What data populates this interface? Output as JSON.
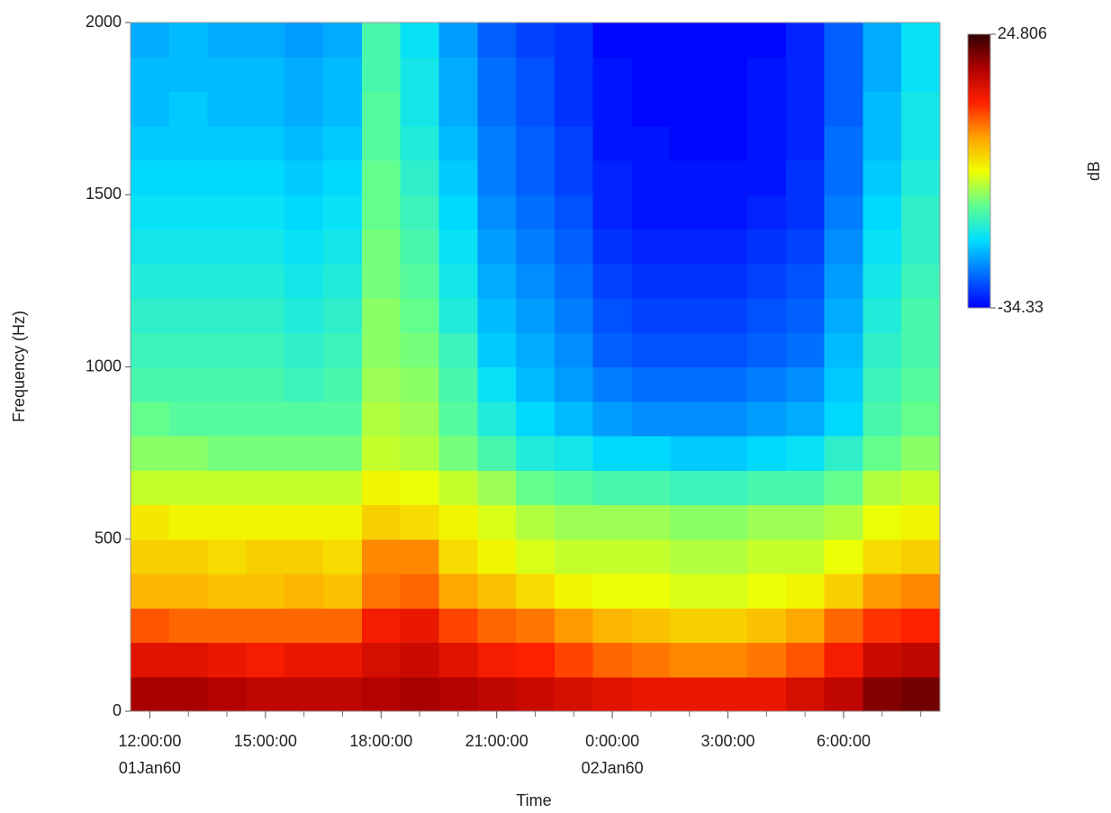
{
  "chart_data": {
    "type": "heatmap",
    "x_label": "Time",
    "y_label": "Frequency (Hz)",
    "colorbar_label": "dB",
    "x": [
      12,
      13,
      14,
      15,
      16,
      17,
      18,
      19,
      20,
      21,
      22,
      23,
      24,
      25,
      26,
      27,
      28,
      29,
      30,
      31,
      32
    ],
    "y": [
      50,
      150,
      250,
      350,
      450,
      550,
      650,
      750,
      850,
      950,
      1050,
      1150,
      1250,
      1350,
      1450,
      1550,
      1650,
      1750,
      1850,
      1950
    ],
    "z": [
      [
        18,
        18,
        17,
        16,
        16,
        16,
        17,
        18,
        17,
        16,
        15,
        14,
        13,
        12,
        12,
        12,
        12,
        14,
        16,
        20,
        21
      ],
      [
        13,
        13,
        12,
        11,
        12,
        12,
        14,
        15,
        13,
        11,
        10,
        8,
        6,
        5,
        4,
        4,
        5,
        7,
        11,
        15,
        16
      ],
      [
        7,
        6,
        6,
        6,
        6,
        6,
        11,
        12,
        8,
        6,
        5,
        3,
        1,
        0,
        -1,
        -1,
        0,
        2,
        6,
        9,
        10
      ],
      [
        1,
        1,
        0,
        0,
        1,
        0,
        5,
        6,
        2,
        0,
        -2,
        -4,
        -5,
        -5,
        -6,
        -6,
        -5,
        -4,
        -1,
        3,
        4
      ],
      [
        -1,
        -1,
        -2,
        -1,
        -1,
        -2,
        4,
        4,
        -2,
        -4,
        -6,
        -7,
        -7,
        -7,
        -8,
        -8,
        -7,
        -7,
        -5,
        -2,
        -1
      ],
      [
        -3,
        -4,
        -4,
        -4,
        -4,
        -4,
        -1,
        -2,
        -4,
        -6,
        -8,
        -9,
        -9,
        -9,
        -10,
        -10,
        -9,
        -9,
        -8,
        -5,
        -4
      ],
      [
        -7,
        -7,
        -7,
        -7,
        -7,
        -7,
        -4,
        -5,
        -7,
        -9,
        -12,
        -13,
        -14,
        -14,
        -15,
        -15,
        -14,
        -14,
        -12,
        -8,
        -7
      ],
      [
        -10,
        -10,
        -11,
        -11,
        -11,
        -11,
        -7,
        -8,
        -11,
        -14,
        -17,
        -18,
        -20,
        -20,
        -21,
        -21,
        -20,
        -19,
        -16,
        -12,
        -10
      ],
      [
        -12,
        -13,
        -13,
        -13,
        -13,
        -13,
        -8,
        -9,
        -13,
        -17,
        -20,
        -22,
        -24,
        -25,
        -25,
        -25,
        -24,
        -23,
        -20,
        -14,
        -12
      ],
      [
        -14,
        -14,
        -14,
        -14,
        -15,
        -14,
        -9,
        -10,
        -14,
        -19,
        -22,
        -24,
        -26,
        -27,
        -27,
        -27,
        -26,
        -25,
        -21,
        -15,
        -13
      ],
      [
        -15,
        -15,
        -15,
        -15,
        -16,
        -15,
        -10,
        -11,
        -15,
        -21,
        -23,
        -25,
        -28,
        -29,
        -29,
        -29,
        -28,
        -27,
        -22,
        -16,
        -14
      ],
      [
        -16,
        -16,
        -16,
        -16,
        -17,
        -16,
        -10,
        -12,
        -17,
        -22,
        -24,
        -26,
        -29,
        -30,
        -30,
        -30,
        -29,
        -28,
        -23,
        -17,
        -14
      ],
      [
        -17,
        -17,
        -17,
        -17,
        -18,
        -17,
        -11,
        -13,
        -18,
        -23,
        -25,
        -27,
        -30,
        -31,
        -31,
        -31,
        -30,
        -29,
        -24,
        -18,
        -15
      ],
      [
        -18,
        -18,
        -18,
        -18,
        -19,
        -18,
        -11,
        -14,
        -19,
        -24,
        -26,
        -28,
        -31,
        -32,
        -32,
        -32,
        -31,
        -30,
        -25,
        -19,
        -16
      ],
      [
        -19,
        -19,
        -19,
        -19,
        -20,
        -19,
        -12,
        -15,
        -20,
        -25,
        -27,
        -29,
        -32,
        -33,
        -33,
        -33,
        -32,
        -31,
        -26,
        -20,
        -16
      ],
      [
        -20,
        -20,
        -20,
        -20,
        -21,
        -20,
        -12,
        -16,
        -21,
        -26,
        -28,
        -30,
        -32,
        -33,
        -33,
        -33,
        -33,
        -31,
        -27,
        -21,
        -17
      ],
      [
        -21,
        -21,
        -21,
        -21,
        -22,
        -21,
        -13,
        -17,
        -22,
        -26,
        -28,
        -30,
        -33,
        -33,
        -34,
        -34,
        -33,
        -32,
        -27,
        -22,
        -18
      ],
      [
        -22,
        -21,
        -22,
        -22,
        -23,
        -22,
        -13,
        -18,
        -23,
        -27,
        -29,
        -31,
        -33,
        -34,
        -34,
        -34,
        -33,
        -32,
        -28,
        -22,
        -18
      ],
      [
        -22,
        -22,
        -22,
        -22,
        -23,
        -22,
        -14,
        -18,
        -23,
        -27,
        -29,
        -31,
        -33,
        -34,
        -34,
        -34,
        -33,
        -32,
        -28,
        -23,
        -19
      ],
      [
        -23,
        -22,
        -23,
        -23,
        -24,
        -23,
        -14,
        -19,
        -24,
        -28,
        -30,
        -31,
        -34,
        -34,
        -34,
        -34,
        -34,
        -32,
        -28,
        -23,
        -19
      ]
    ],
    "xlim": [
      11.5,
      32.5
    ],
    "xticks": [
      {
        "value": 12,
        "label": "12:00:00"
      },
      {
        "value": 15,
        "label": "15:00:00"
      },
      {
        "value": 18,
        "label": "18:00:00"
      },
      {
        "value": 21,
        "label": "21:00:00"
      },
      {
        "value": 24,
        "label": "0:00:00"
      },
      {
        "value": 27,
        "label": "3:00:00"
      },
      {
        "value": 30,
        "label": "6:00:00"
      }
    ],
    "xdates": [
      {
        "value": 12,
        "label": "01Jan60"
      },
      {
        "value": 24,
        "label": "02Jan60"
      }
    ],
    "xminorticks": [
      13,
      14,
      16,
      17,
      19,
      20,
      22,
      23,
      25,
      26,
      28,
      29,
      31,
      32
    ],
    "ylim": [
      0,
      2000
    ],
    "yticks": [
      0,
      500,
      1000,
      1500,
      2000
    ],
    "zlim": [
      -34.33,
      24.806
    ],
    "zticks": [
      -34.33,
      24.806
    ],
    "colormap": [
      "#0000ff",
      "#0070ff",
      "#00e0ff",
      "#60ff90",
      "#f0ff00",
      "#ffa000",
      "#ff2000",
      "#b00000",
      "#300000"
    ]
  }
}
